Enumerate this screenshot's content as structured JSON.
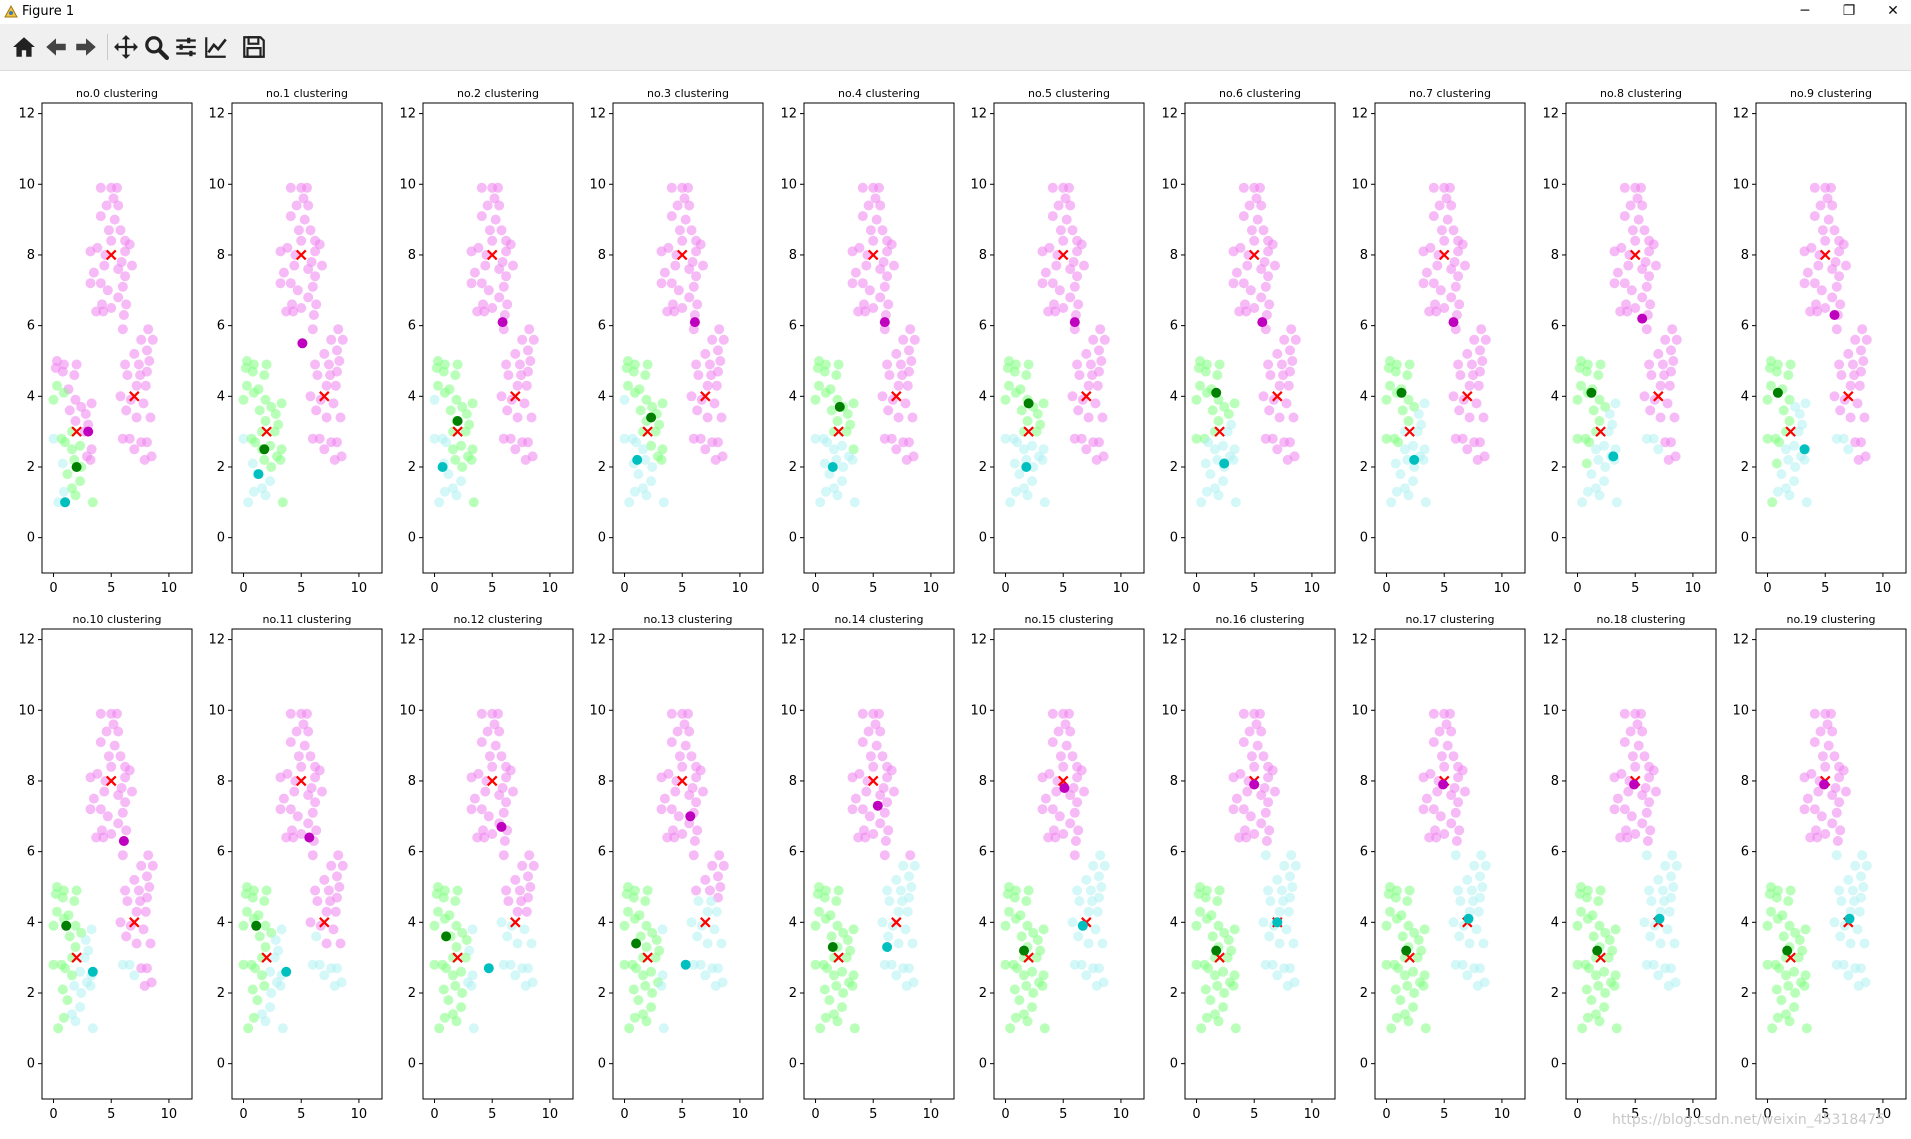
{
  "window": {
    "title": "Figure 1",
    "minimize_label": "─",
    "restore_label": "❐",
    "close_label": "✕"
  },
  "toolbar": {
    "buttons": [
      "home-icon",
      "back-icon",
      "forward-icon",
      "pan-icon",
      "zoom-icon",
      "subplots-icon",
      "edit-axes-icon",
      "save-icon"
    ]
  },
  "colors": {
    "cluster_0": "#ee82ee",
    "cluster_1": "#7fff7f",
    "cluster_2": "#b0f0f2",
    "centroid_0": "#bf00bf",
    "centroid_1": "#007f00",
    "centroid_2": "#00bfbf",
    "true_center": "#ff0000"
  },
  "chart_data": {
    "type": "scatter",
    "xlim": [
      -1,
      12
    ],
    "ylim": [
      -1,
      12.3
    ],
    "xticks": [
      "0",
      "5",
      "10"
    ],
    "yticks": [
      "0",
      "2",
      "4",
      "6",
      "8",
      "10",
      "12"
    ],
    "true_centers": [
      [
        5,
        8
      ],
      [
        7,
        4
      ],
      [
        2,
        3
      ]
    ],
    "points": [
      [
        5.0,
        9.9
      ],
      [
        5.5,
        9.9
      ],
      [
        4.1,
        9.9
      ],
      [
        5.2,
        9.6
      ],
      [
        4.6,
        9.4
      ],
      [
        5.6,
        9.4
      ],
      [
        4.1,
        9.1
      ],
      [
        5.3,
        9.0
      ],
      [
        4.8,
        8.7
      ],
      [
        5.8,
        8.7
      ],
      [
        6.2,
        8.4
      ],
      [
        3.8,
        8.2
      ],
      [
        5.0,
        8.4
      ],
      [
        6.6,
        8.3
      ],
      [
        3.2,
        8.1
      ],
      [
        4.5,
        8.0
      ],
      [
        6.2,
        8.1
      ],
      [
        5.9,
        7.8
      ],
      [
        4.4,
        7.7
      ],
      [
        6.8,
        7.7
      ],
      [
        3.5,
        7.5
      ],
      [
        5.6,
        7.6
      ],
      [
        6.2,
        7.4
      ],
      [
        4.1,
        7.2
      ],
      [
        3.2,
        7.2
      ],
      [
        4.7,
        7.0
      ],
      [
        6.0,
        7.1
      ],
      [
        5.6,
        6.8
      ],
      [
        4.2,
        6.6
      ],
      [
        6.3,
        6.6
      ],
      [
        3.7,
        6.4
      ],
      [
        4.3,
        6.4
      ],
      [
        5.0,
        6.5
      ],
      [
        6.1,
        6.3
      ],
      [
        6.0,
        5.9
      ],
      [
        8.2,
        5.9
      ],
      [
        8.6,
        5.6
      ],
      [
        7.6,
        5.6
      ],
      [
        8.1,
        5.3
      ],
      [
        7.0,
        5.2
      ],
      [
        8.3,
        5.0
      ],
      [
        7.4,
        4.9
      ],
      [
        6.2,
        4.9
      ],
      [
        8.1,
        4.7
      ],
      [
        7.5,
        4.6
      ],
      [
        6.4,
        4.6
      ],
      [
        7.2,
        4.3
      ],
      [
        8.0,
        4.3
      ],
      [
        5.8,
        4.0
      ],
      [
        6.7,
        3.9
      ],
      [
        7.8,
        3.8
      ],
      [
        6.3,
        3.6
      ],
      [
        7.2,
        3.4
      ],
      [
        8.4,
        3.4
      ],
      [
        6.0,
        2.8
      ],
      [
        6.6,
        2.8
      ],
      [
        7.6,
        2.7
      ],
      [
        8.1,
        2.7
      ],
      [
        7.0,
        2.5
      ],
      [
        8.5,
        2.3
      ],
      [
        7.9,
        2.2
      ],
      [
        0.3,
        5.0
      ],
      [
        0.9,
        4.9
      ],
      [
        0.2,
        4.8
      ],
      [
        0.8,
        4.7
      ],
      [
        2.0,
        4.9
      ],
      [
        1.8,
        4.6
      ],
      [
        0.3,
        4.3
      ],
      [
        1.3,
        4.2
      ],
      [
        0.9,
        4.1
      ],
      [
        0.0,
        3.9
      ],
      [
        1.9,
        3.9
      ],
      [
        3.3,
        3.8
      ],
      [
        2.4,
        3.7
      ],
      [
        1.4,
        3.6
      ],
      [
        2.8,
        3.5
      ],
      [
        1.9,
        3.3
      ],
      [
        3.0,
        3.2
      ],
      [
        1.6,
        3.0
      ],
      [
        2.7,
        3.0
      ],
      [
        0.0,
        2.8
      ],
      [
        0.7,
        2.8
      ],
      [
        1.0,
        2.7
      ],
      [
        2.3,
        2.6
      ],
      [
        3.3,
        2.5
      ],
      [
        1.6,
        2.5
      ],
      [
        2.9,
        2.3
      ],
      [
        1.8,
        2.2
      ],
      [
        3.2,
        2.2
      ],
      [
        0.8,
        2.1
      ],
      [
        2.4,
        2.0
      ],
      [
        1.2,
        1.8
      ],
      [
        2.3,
        1.6
      ],
      [
        1.6,
        1.4
      ],
      [
        0.9,
        1.3
      ],
      [
        1.9,
        1.2
      ],
      [
        0.4,
        1.0
      ],
      [
        3.4,
        1.0
      ]
    ],
    "subplots": [
      {
        "title": "no.0 clustering",
        "cuts": [
          6.0,
          5.5
        ],
        "c2": [
          1.0,
          1.0
        ],
        "c1": [
          2.0,
          2.0
        ],
        "c0": [
          3.0,
          3.0
        ]
      },
      {
        "title": "no.1 clustering",
        "cuts": [
          1.0,
          3.3
        ],
        "c2": [
          1.3,
          1.8
        ],
        "c1": [
          1.8,
          2.5
        ],
        "c0": [
          5.1,
          5.5
        ]
      },
      {
        "title": "no.2 clustering",
        "cuts": [
          1.4,
          4.0
        ],
        "c2": [
          0.7,
          2.0
        ],
        "c1": [
          2.0,
          3.3
        ],
        "c0": [
          5.9,
          6.1
        ]
      },
      {
        "title": "no.3 clustering",
        "cuts": [
          1.4,
          4.0
        ],
        "c2": [
          1.1,
          2.2
        ],
        "c1": [
          2.3,
          3.4
        ],
        "c0": [
          6.1,
          6.1
        ]
      },
      {
        "title": "no.4 clustering",
        "cuts": [
          1.6,
          4.0
        ],
        "c2": [
          1.5,
          2.0
        ],
        "c1": [
          2.1,
          3.7
        ],
        "c0": [
          6.0,
          6.1
        ]
      },
      {
        "title": "no.5 clustering",
        "cuts": [
          1.6,
          4.0
        ],
        "c2": [
          1.8,
          2.0
        ],
        "c1": [
          2.0,
          3.8
        ],
        "c0": [
          6.0,
          6.1
        ]
      },
      {
        "title": "no.6 clustering",
        "cuts": [
          2.4,
          4.0
        ],
        "c2": [
          2.4,
          2.1
        ],
        "c1": [
          1.7,
          4.1
        ],
        "c0": [
          5.7,
          6.1
        ]
      },
      {
        "title": "no.7 clustering",
        "cuts": [
          2.5,
          4.0
        ],
        "c2": [
          2.4,
          2.2
        ],
        "c1": [
          1.3,
          4.1
        ],
        "c0": [
          5.8,
          6.1
        ]
      },
      {
        "title": "no.8 clustering",
        "cuts": [
          2.8,
          4.0
        ],
        "c2": [
          3.1,
          2.3
        ],
        "c1": [
          1.2,
          4.1
        ],
        "c0": [
          5.6,
          6.2
        ]
      },
      {
        "title": "no.9 clustering",
        "cuts": [
          3.0,
          4.2
        ],
        "c2": [
          3.2,
          2.5
        ],
        "c1": [
          0.9,
          4.1
        ],
        "c0": [
          5.8,
          6.3
        ]
      },
      {
        "title": "no.10 clustering",
        "cuts": [
          2.9,
          5.2
        ],
        "c2": [
          3.4,
          2.6
        ],
        "c1": [
          1.1,
          3.9
        ],
        "c0": [
          6.1,
          6.3
        ]
      },
      {
        "title": "no.11 clustering",
        "cuts": [
          3.0,
          5.3
        ],
        "c2": [
          3.7,
          2.6
        ],
        "c1": [
          1.1,
          3.9
        ],
        "c0": [
          5.7,
          6.4
        ]
      },
      {
        "title": "no.12 clustering",
        "cuts": [
          3.4,
          5.5
        ],
        "c2": [
          4.7,
          2.7
        ],
        "c1": [
          1.0,
          3.6
        ],
        "c0": [
          5.8,
          6.7
        ]
      },
      {
        "title": "no.13 clustering",
        "cuts": [
          3.5,
          5.6
        ],
        "c2": [
          5.3,
          2.8
        ],
        "c1": [
          1.0,
          3.4
        ],
        "c0": [
          5.7,
          7.0
        ]
      },
      {
        "title": "no.14 clustering",
        "cuts": [
          3.7,
          5.8
        ],
        "c2": [
          6.2,
          3.3
        ],
        "c1": [
          1.5,
          3.3
        ],
        "c0": [
          5.4,
          7.3
        ]
      },
      {
        "title": "no.15 clustering",
        "cuts": [
          3.8,
          6.0
        ],
        "c2": [
          6.7,
          3.9
        ],
        "c1": [
          1.6,
          3.2
        ],
        "c0": [
          5.1,
          7.8
        ]
      },
      {
        "title": "no.16 clustering",
        "cuts": [
          3.9,
          6.1
        ],
        "c2": [
          7.0,
          4.0
        ],
        "c1": [
          1.7,
          3.2
        ],
        "c0": [
          5.0,
          7.9
        ]
      },
      {
        "title": "no.17 clustering",
        "cuts": [
          3.9,
          6.1
        ],
        "c2": [
          7.1,
          4.1
        ],
        "c1": [
          1.7,
          3.2
        ],
        "c0": [
          4.9,
          7.9
        ]
      },
      {
        "title": "no.18 clustering",
        "cuts": [
          3.9,
          6.1
        ],
        "c2": [
          7.1,
          4.1
        ],
        "c1": [
          1.7,
          3.2
        ],
        "c0": [
          4.9,
          7.9
        ]
      },
      {
        "title": "no.19 clustering",
        "cuts": [
          3.9,
          6.1
        ],
        "c2": [
          7.1,
          4.1
        ],
        "c1": [
          1.7,
          3.2
        ],
        "c0": [
          4.9,
          7.9
        ]
      }
    ]
  },
  "watermark": "https://blog.csdn.net/weixin_45318475"
}
